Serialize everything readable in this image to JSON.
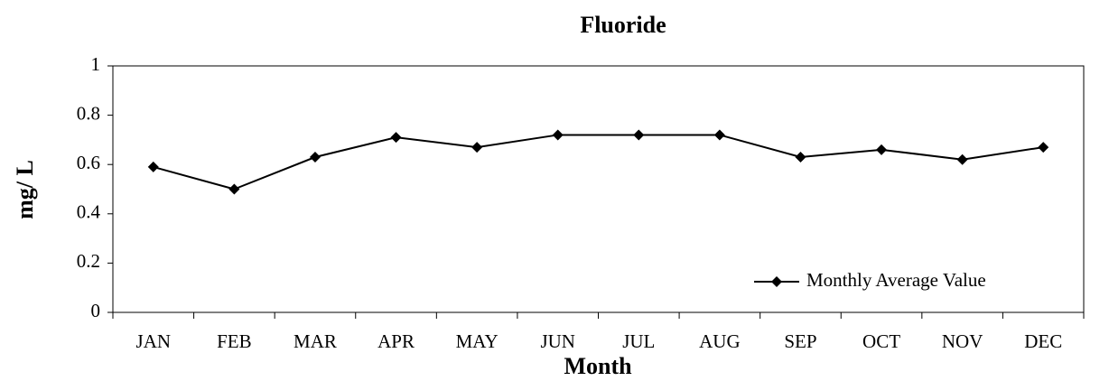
{
  "chart_data": {
    "type": "line",
    "title": "Fluoride",
    "x_label": "Month",
    "y_label": "mg/ L",
    "categories": [
      "JAN",
      "FEB",
      "MAR",
      "APR",
      "MAY",
      "JUN",
      "JUL",
      "AUG",
      "SEP",
      "OCT",
      "NOV",
      "DEC"
    ],
    "series": [
      {
        "name": "Monthly Average Value",
        "color": "#000000",
        "values": [
          0.59,
          0.5,
          0.63,
          0.71,
          0.67,
          0.72,
          0.72,
          0.72,
          0.63,
          0.66,
          0.62,
          0.67
        ]
      }
    ],
    "ylim": [
      0,
      1
    ],
    "yticks": [
      0,
      0.2,
      0.4,
      0.6,
      0.8,
      1
    ],
    "grid": false,
    "legend": "lower right"
  }
}
